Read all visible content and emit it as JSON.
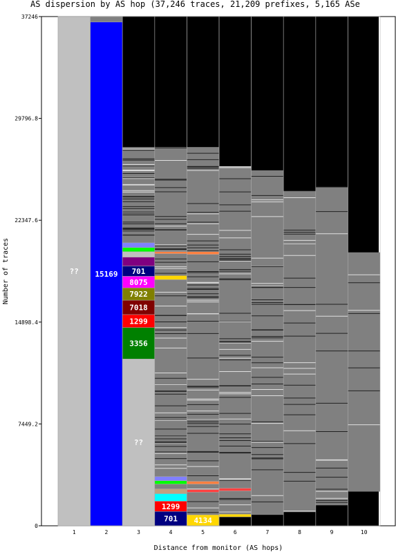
{
  "chart_data": {
    "type": "bar",
    "title": "AS dispersion by AS hop (37,246 traces, 21,209 prefixes, 5,165 ASe",
    "xlabel": "Distance from monitor (AS hops)",
    "ylabel": "Number of traces",
    "ylim": [
      0,
      37246
    ],
    "yticks": [
      "0",
      "7449.2",
      "14898.4",
      "22347.6",
      "29796.8",
      "37246"
    ],
    "categories": [
      "1",
      "2",
      "3",
      "4",
      "5",
      "6",
      "7",
      "8",
      "9",
      "10"
    ],
    "colors": {
      "background": "#000000",
      "unknown": "#c0c0c0",
      "other_grey": "#808080",
      "separator": "#aaaaaa"
    },
    "columns": [
      {
        "hop": "1",
        "gray_top": 37246,
        "gray_bottom": 0,
        "segments": [
          {
            "label": "??",
            "from": 0,
            "to": 37246,
            "color": "#c0c0c0",
            "text_color": "#ffffff"
          }
        ]
      },
      {
        "hop": "2",
        "gray_top": 37246,
        "gray_bottom": 0,
        "segments": [
          {
            "label": "15169",
            "from": 0,
            "to": 36850,
            "color": "#0000ff",
            "text_color": "#ffffff"
          },
          {
            "label": "",
            "from": 36850,
            "to": 37246,
            "color": "#808080"
          }
        ]
      },
      {
        "hop": "3",
        "gray_top": 27700,
        "gray_bottom": 20700,
        "line_count": 40,
        "segments": [
          {
            "label": "??",
            "from": 0,
            "to": 12200,
            "color": "#c0c0c0",
            "text_color": "#ffffff"
          },
          {
            "label": "3356",
            "from": 12200,
            "to": 14500,
            "color": "#008000",
            "text_color": "#ffffff"
          },
          {
            "label": "1299",
            "from": 14500,
            "to": 15450,
            "color": "#ff0000",
            "text_color": "#ffffff"
          },
          {
            "label": "7018",
            "from": 15450,
            "to": 16500,
            "color": "#800000",
            "text_color": "#ffffff"
          },
          {
            "label": "7922",
            "from": 16500,
            "to": 17400,
            "color": "#808000",
            "text_color": "#ffffff"
          },
          {
            "label": "8075",
            "from": 17400,
            "to": 18250,
            "color": "#ff00ff",
            "text_color": "#ffffff"
          },
          {
            "label": "701",
            "from": 18250,
            "to": 19000,
            "color": "#000080",
            "text_color": "#ffffff"
          },
          {
            "label": "",
            "from": 19000,
            "to": 19650,
            "color": "#800080"
          },
          {
            "label": "",
            "from": 19650,
            "to": 20050,
            "color": "#c0c0c0"
          },
          {
            "label": "",
            "from": 20050,
            "to": 20350,
            "color": "#00ff00"
          },
          {
            "label": "",
            "from": 20350,
            "to": 20700,
            "color": "#8080ff"
          }
        ]
      },
      {
        "hop": "4",
        "gray_top": 27700,
        "gray_bottom": 2200,
        "line_count": 60,
        "segments": [
          {
            "label": "701",
            "from": 0,
            "to": 1050,
            "color": "#000080",
            "text_color": "#ffffff"
          },
          {
            "label": "1299",
            "from": 1050,
            "to": 1800,
            "color": "#ff0000",
            "text_color": "#ffffff"
          },
          {
            "label": "",
            "from": 1800,
            "to": 2350,
            "color": "#00ffff"
          },
          {
            "label": "",
            "from": 2350,
            "to": 2700,
            "color": "#c0a080"
          },
          {
            "label": "",
            "from": 2700,
            "to": 3050,
            "color": "#808080"
          },
          {
            "label": "",
            "from": 3050,
            "to": 3300,
            "color": "#00ff00"
          },
          {
            "label": "",
            "from": 3300,
            "to": 3600,
            "color": "#8080ff"
          },
          {
            "label": "",
            "from": 18000,
            "to": 18300,
            "color": "#ffd700"
          },
          {
            "label": "",
            "from": 19900,
            "to": 20050,
            "color": "#ff8040"
          }
        ]
      },
      {
        "hop": "5",
        "gray_top": 27700,
        "gray_bottom": 400,
        "line_count": 60,
        "segments": [
          {
            "label": "4134",
            "from": 0,
            "to": 800,
            "color": "#ffd700",
            "text_color": "#ffffff"
          },
          {
            "label": "",
            "from": 2450,
            "to": 2650,
            "color": "#ff4040"
          },
          {
            "label": "",
            "from": 3050,
            "to": 3250,
            "color": "#ff8040"
          },
          {
            "label": "",
            "from": 19850,
            "to": 20050,
            "color": "#ff8040"
          }
        ]
      },
      {
        "hop": "6",
        "gray_top": 26300,
        "gray_bottom": 800,
        "line_count": 55,
        "segments": [
          {
            "label": "",
            "from": 650,
            "to": 850,
            "color": "#ffd700"
          },
          {
            "label": "",
            "from": 2550,
            "to": 2750,
            "color": "#ff4040"
          }
        ]
      },
      {
        "hop": "7",
        "gray_top": 26000,
        "gray_bottom": 800,
        "line_count": 40,
        "segments": []
      },
      {
        "hop": "8",
        "gray_top": 24500,
        "gray_bottom": 1000,
        "line_count": 28,
        "segments": []
      },
      {
        "hop": "9",
        "gray_top": 24800,
        "gray_bottom": 1500,
        "line_count": 18,
        "segments": []
      },
      {
        "hop": "10",
        "gray_top": 20000,
        "gray_bottom": 2500,
        "line_count": 8,
        "segments": []
      }
    ]
  }
}
